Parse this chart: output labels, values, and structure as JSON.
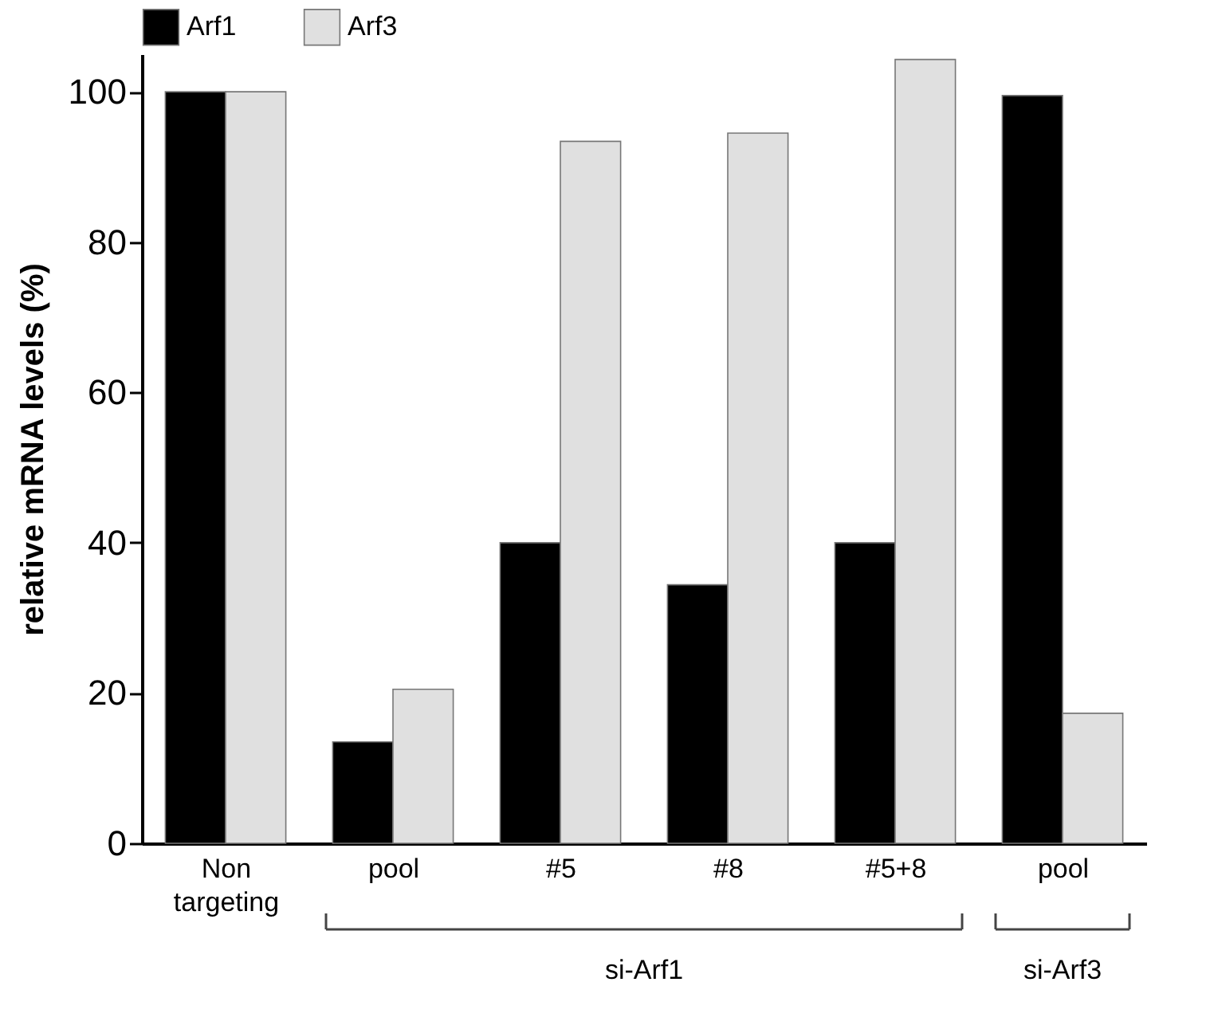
{
  "chart_data": {
    "type": "bar",
    "ylabel": "relative mRNA levels (%)",
    "categories": [
      "Non targeting",
      "pool",
      "#5",
      "#8",
      "#5+8",
      "pool"
    ],
    "series": [
      {
        "name": "Arf1",
        "color": "#000000",
        "values": [
          100,
          13.5,
          40,
          34.4,
          40,
          99.5
        ]
      },
      {
        "name": "Arf3",
        "color": "#e0e0e0",
        "values": [
          100,
          20.5,
          93.4,
          94.5,
          104.3,
          17.3
        ]
      }
    ],
    "ylim": [
      0,
      105
    ],
    "yticks": [
      0,
      20,
      40,
      60,
      80,
      100
    ],
    "grid": false,
    "legend": "top",
    "annotations": [
      "si-Arf1",
      "si-Arf3"
    ]
  }
}
